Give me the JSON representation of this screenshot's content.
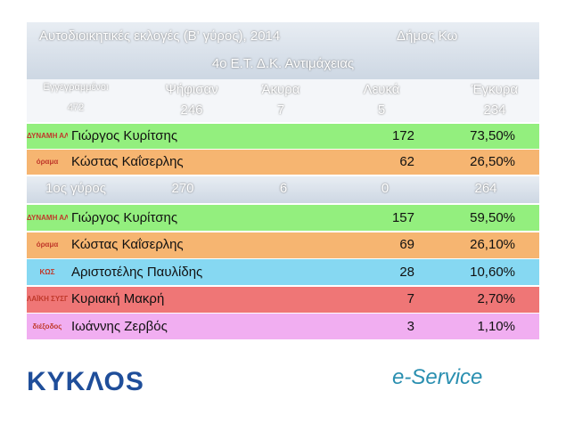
{
  "header": {
    "title": "Αυτοδιοικητικές εκλογές (Β' γύρος), 2014",
    "municipality": "Δήμος Κω",
    "subtitle": "4ο Ε.Τ. Δ.Κ. Αντιμάχειας"
  },
  "summary": {
    "headers": [
      "Εγγεγραμμένοι",
      "Ψήφισαν",
      "Άκυρα",
      "Λευκά",
      "Έγκυρα"
    ],
    "values": [
      "472",
      "246",
      "7",
      "5",
      "234"
    ]
  },
  "round2": [
    {
      "logo": "ΔΥΝΑΜΗ ΑΛΛΑΓΗΣ",
      "name": "Γιώργος Κυρίτσης",
      "votes": "172",
      "percent": "73,50%",
      "color": "#93ef7e"
    },
    {
      "logo": "όραμα",
      "name": "Κώστας Καΐσερλης",
      "votes": "62",
      "percent": "26,50%",
      "color": "#f6b571"
    }
  ],
  "round1": {
    "label": "1ος γύρος",
    "values": [
      "270",
      "6",
      "0",
      "264"
    ],
    "candidates": [
      {
        "logo": "ΔΥΝΑΜΗ ΑΛΛΑΓΗΣ",
        "name": "Γιώργος Κυρίτσης",
        "votes": "157",
        "percent": "59,50%",
        "color": "#93ef7e"
      },
      {
        "logo": "όραμα",
        "name": "Κώστας Καΐσερλης",
        "votes": "69",
        "percent": "26,10%",
        "color": "#f6b571"
      },
      {
        "logo": "ΚΩΣ",
        "name": "Αριστοτέλης Παυλίδης",
        "votes": "28",
        "percent": "10,60%",
        "color": "#86d8f2"
      },
      {
        "logo": "ΛΑΪΚΗ ΣΥΣΠΕΙΡΩΣΗ",
        "name": "Κυριακή Μακρή",
        "votes": "7",
        "percent": "2,70%",
        "color": "#ef7676"
      },
      {
        "logo": "διέξοδος",
        "name": "Ιωάννης Ζερβός",
        "votes": "3",
        "percent": "1,10%",
        "color": "#f1aef1"
      }
    ]
  },
  "footer": {
    "brand": "ΚΥΚΛΟS",
    "service": "e-Service"
  }
}
